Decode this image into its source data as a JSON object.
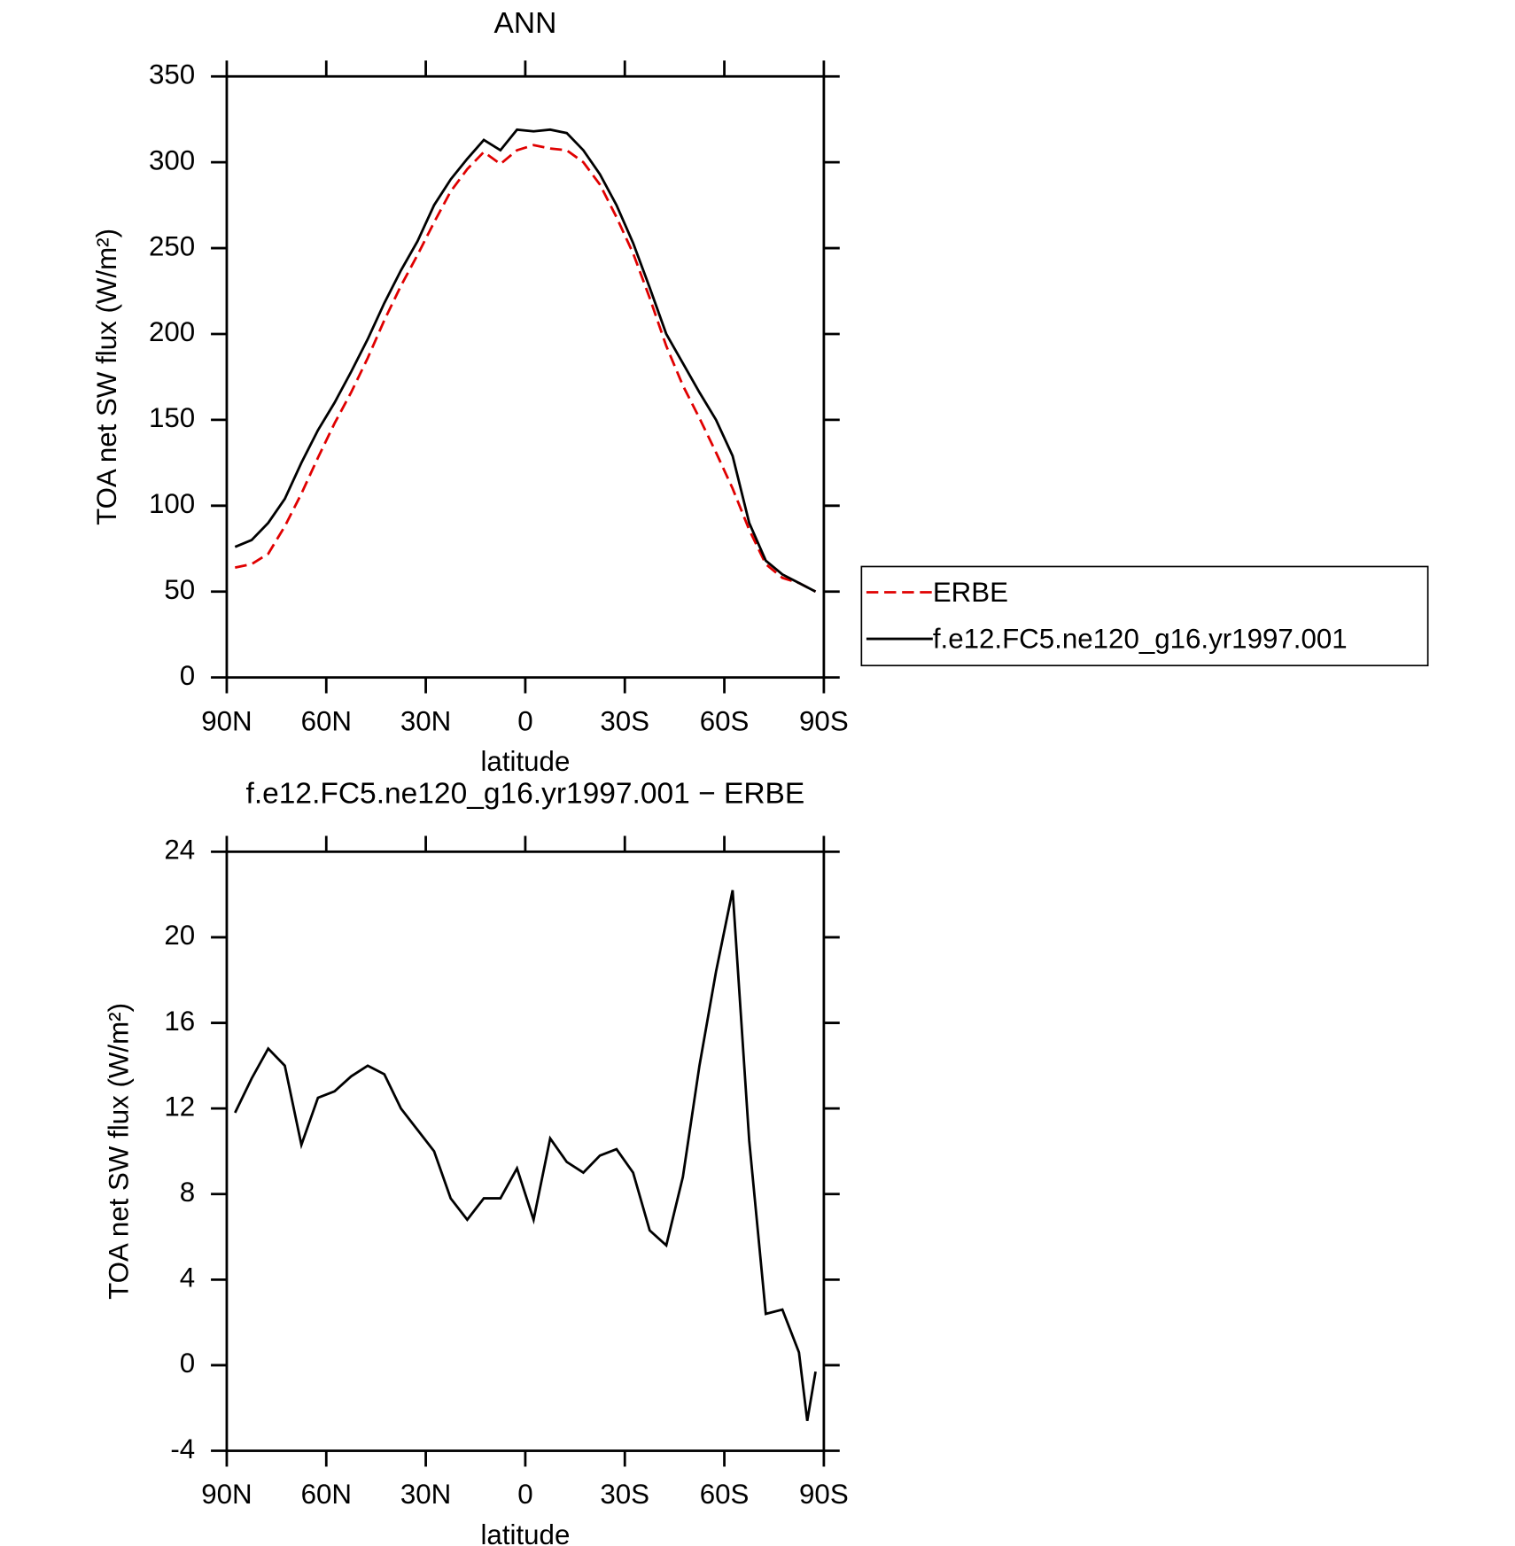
{
  "chart_data": [
    {
      "type": "line",
      "title": "ANN",
      "xlabel": "latitude",
      "ylabel": "TOA net SW flux (W/m²)",
      "xlim": [
        90,
        -90
      ],
      "ylim": [
        0,
        350
      ],
      "xticks": [
        {
          "value": 90,
          "label": "90N"
        },
        {
          "value": 60,
          "label": "60N"
        },
        {
          "value": 30,
          "label": "30N"
        },
        0,
        {
          "value": -30,
          "label": "30S"
        },
        {
          "value": -60,
          "label": "60S"
        },
        {
          "value": -90,
          "label": "90S"
        }
      ],
      "yticks": [
        0,
        50,
        100,
        150,
        200,
        250,
        300,
        350
      ],
      "legend": "right",
      "x": [
        87.5,
        82.5,
        77.5,
        72.5,
        67.5,
        62.5,
        57.5,
        52.5,
        47.5,
        42.5,
        37.5,
        32.5,
        27.5,
        22.5,
        17.5,
        12.5,
        7.5,
        2.5,
        -2.5,
        -7.5,
        -12.5,
        -17.5,
        -22.5,
        -27.5,
        -32.5,
        -37.5,
        -42.5,
        -47.5,
        -52.5,
        -57.5,
        -62.5,
        -67.5,
        -72.5,
        -77.5,
        -82.5,
        -87.5
      ],
      "series": [
        {
          "name": "ERBE",
          "color": "#e00000",
          "line_style": "dashed",
          "values": [
            64,
            66,
            72,
            88,
            107,
            128,
            148,
            166,
            186,
            208,
            228,
            246,
            265,
            283,
            296,
            306,
            299,
            307,
            310,
            308,
            307,
            300,
            287,
            268,
            247,
            221,
            193,
            170,
            151,
            131,
            110,
            86,
            66,
            58,
            55,
            50
          ]
        },
        {
          "name": "f.e12.FC5.ne120_g16.yr1997.001",
          "color": "#000000",
          "line_style": "solid",
          "values": [
            76,
            80,
            90,
            104,
            125,
            144,
            160,
            178,
            197,
            218,
            237,
            254,
            275,
            290,
            302,
            313,
            307,
            319,
            318,
            319,
            317,
            307,
            293,
            275,
            253,
            227,
            200,
            183,
            166,
            150,
            129,
            90,
            68,
            60,
            55,
            50
          ]
        }
      ]
    },
    {
      "type": "line",
      "title": "f.e12.FC5.ne120_g16.yr1997.001 − ERBE",
      "xlabel": "latitude",
      "ylabel": "TOA net SW flux (W/m²)",
      "xlim": [
        90,
        -90
      ],
      "ylim": [
        -4,
        24
      ],
      "xticks": [
        {
          "value": 90,
          "label": "90N"
        },
        {
          "value": 60,
          "label": "60N"
        },
        {
          "value": 30,
          "label": "30N"
        },
        0,
        {
          "value": -30,
          "label": "30S"
        },
        {
          "value": -60,
          "label": "60S"
        },
        {
          "value": -90,
          "label": "90S"
        }
      ],
      "yticks": [
        -4,
        0,
        4,
        8,
        12,
        16,
        20,
        24
      ],
      "x": [
        87.5,
        82.5,
        77.5,
        72.5,
        67.5,
        62.5,
        57.5,
        52.5,
        47.5,
        42.5,
        37.5,
        32.5,
        27.5,
        22.5,
        17.5,
        12.5,
        7.5,
        2.5,
        -2.5,
        -7.5,
        -12.5,
        -17.5,
        -22.5,
        -27.5,
        -32.5,
        -37.5,
        -42.5,
        -47.5,
        -52.5,
        -57.5,
        -62.5,
        -67.5,
        -72.5,
        -77.5,
        -82.5,
        -85,
        -87.5
      ],
      "series": [
        {
          "color": "#000000",
          "line_style": "solid",
          "values": [
            11.8,
            13.4,
            14.8,
            14,
            10.3,
            12.5,
            12.8,
            13.5,
            14,
            13.6,
            12,
            11,
            10,
            7.8,
            6.8,
            7.8,
            7.8,
            9.2,
            6.8,
            10.6,
            9.5,
            9,
            9.8,
            10.1,
            9,
            6.3,
            5.6,
            8.8,
            14,
            18.4,
            22.2,
            10.5,
            2.4,
            2.6,
            0.6,
            -2.6,
            -0.3
          ]
        }
      ]
    }
  ]
}
